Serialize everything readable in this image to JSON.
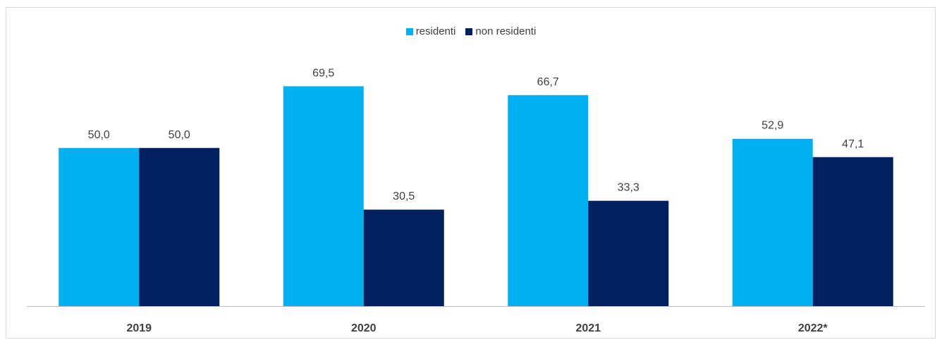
{
  "chart_data": {
    "type": "bar",
    "categories": [
      "2019",
      "2020",
      "2021",
      "2022*"
    ],
    "series": [
      {
        "name": "residenti",
        "color": "#00b0f0",
        "values": [
          50.0,
          69.5,
          66.7,
          52.9
        ],
        "labels": [
          "50,0",
          "69,5",
          "66,7",
          "52,9"
        ]
      },
      {
        "name": "non residenti",
        "color": "#002060",
        "values": [
          50.0,
          30.5,
          33.3,
          47.1
        ],
        "labels": [
          "50,0",
          "30,5",
          "33,3",
          "47,1"
        ]
      }
    ],
    "ylim": [
      0,
      80
    ],
    "grid": false,
    "legend_position": "top-center"
  }
}
